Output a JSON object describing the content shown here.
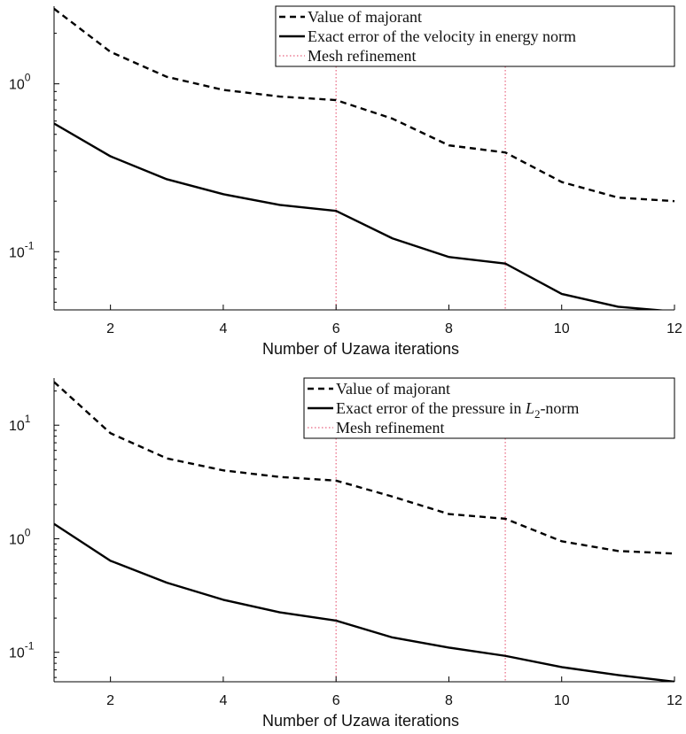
{
  "chart_data": [
    {
      "type": "line",
      "x": [
        1,
        2,
        3,
        4,
        5,
        6,
        7,
        8,
        9,
        10,
        11,
        12
      ],
      "xlabel": "Number of Uzawa iterations",
      "ylabel": "",
      "xlim": [
        1,
        12
      ],
      "ylim": [
        0.045,
        2.9
      ],
      "yscale": "log",
      "grid": false,
      "legend_position": "top-right",
      "xtick_labels": [
        "2",
        "4",
        "6",
        "8",
        "10",
        "12"
      ],
      "ytick_labels": [
        {
          "base": "10",
          "exp": "-1"
        },
        {
          "base": "10",
          "exp": "0"
        }
      ],
      "series": [
        {
          "name": "Value of majorant",
          "style": "dashed",
          "color": "#000000",
          "values": [
            2.8,
            1.55,
            1.1,
            0.92,
            0.84,
            0.8,
            0.62,
            0.43,
            0.39,
            0.26,
            0.21,
            0.2
          ]
        },
        {
          "name": "Exact error of the velocity in energy norm",
          "style": "solid",
          "color": "#000000",
          "values": [
            0.58,
            0.37,
            0.27,
            0.22,
            0.19,
            0.175,
            0.12,
            0.093,
            0.085,
            0.056,
            0.047,
            0.044
          ]
        }
      ],
      "vlines": {
        "name": "Mesh refinement",
        "style": "dotted",
        "color": "#e8647f",
        "x": [
          6,
          9
        ]
      }
    },
    {
      "type": "line",
      "x": [
        1,
        2,
        3,
        4,
        5,
        6,
        7,
        8,
        9,
        10,
        11,
        12
      ],
      "xlabel": "Number of Uzawa iterations",
      "ylabel": "",
      "xlim": [
        1,
        12
      ],
      "ylim": [
        0.055,
        26
      ],
      "yscale": "log",
      "grid": false,
      "legend_position": "top-right",
      "xtick_labels": [
        "2",
        "4",
        "6",
        "8",
        "10",
        "12"
      ],
      "ytick_labels": [
        {
          "base": "10",
          "exp": "-1"
        },
        {
          "base": "10",
          "exp": "0"
        },
        {
          "base": "10",
          "exp": "1"
        }
      ],
      "series": [
        {
          "name": "Exact error of the pressure in L2-norm",
          "legend_parts": {
            "before": "Exact error of the pressure in ",
            "symbol": "L",
            "subscript": "2",
            "after": "-norm"
          },
          "style": "solid",
          "color": "#000000",
          "values": [
            1.35,
            0.64,
            0.41,
            0.29,
            0.225,
            0.19,
            0.135,
            0.11,
            0.093,
            0.074,
            0.063,
            0.055
          ]
        },
        {
          "name": "Value of majorant",
          "style": "dashed",
          "color": "#000000",
          "values": [
            24,
            8.5,
            5.1,
            4.0,
            3.5,
            3.25,
            2.35,
            1.65,
            1.5,
            0.95,
            0.78,
            0.74
          ]
        }
      ],
      "vlines": {
        "name": "Mesh refinement",
        "style": "dotted",
        "color": "#e8647f",
        "x": [
          6,
          9
        ]
      }
    }
  ]
}
